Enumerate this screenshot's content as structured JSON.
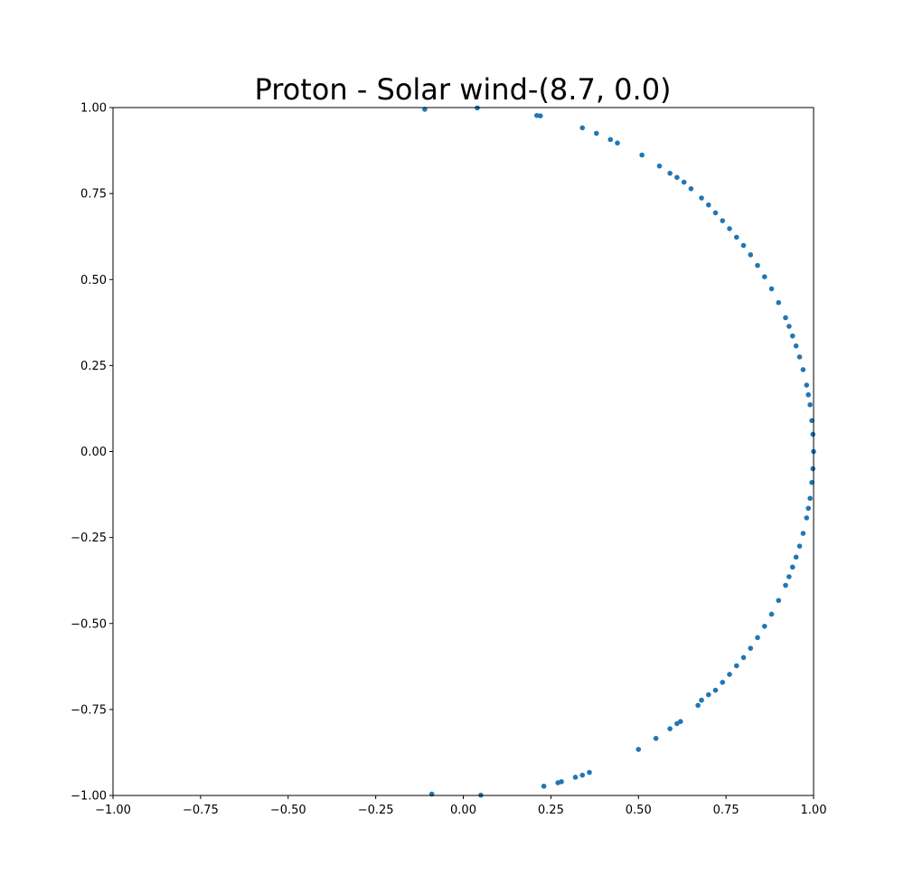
{
  "chart_data": {
    "type": "scatter",
    "title": "Proton - Solar wind-(8.7, 0.0)",
    "xlabel": "",
    "ylabel": "",
    "xlim": [
      -1.0,
      1.0
    ],
    "ylim": [
      -1.0,
      1.0
    ],
    "grid": false,
    "color": "#1f77b4",
    "x_ticks": [
      -1.0,
      -0.75,
      -0.5,
      -0.25,
      0.0,
      0.25,
      0.5,
      0.75,
      1.0
    ],
    "y_ticks": [
      -1.0,
      -0.75,
      -0.5,
      -0.25,
      0.0,
      0.25,
      0.5,
      0.75,
      1.0
    ],
    "x_tick_labels": [
      "−1.00",
      "−0.75",
      "−0.50",
      "−0.25",
      "0.00",
      "0.25",
      "0.50",
      "0.75",
      "1.00"
    ],
    "y_tick_labels": [
      "−1.00",
      "−0.75",
      "−0.50",
      "−0.25",
      "0.00",
      "0.25",
      "0.50",
      "0.75",
      "1.00"
    ],
    "series": [
      {
        "points": [
          [
            -0.11,
            0.995
          ],
          [
            0.04,
            0.999
          ],
          [
            0.21,
            0.977
          ],
          [
            0.22,
            0.976
          ],
          [
            0.34,
            0.941
          ],
          [
            0.38,
            0.925
          ],
          [
            0.42,
            0.907
          ],
          [
            0.44,
            0.897
          ],
          [
            0.51,
            0.862
          ],
          [
            0.56,
            0.83
          ],
          [
            0.59,
            0.809
          ],
          [
            0.61,
            0.797
          ],
          [
            0.63,
            0.783
          ],
          [
            0.65,
            0.764
          ],
          [
            0.68,
            0.737
          ],
          [
            0.7,
            0.717
          ],
          [
            0.72,
            0.694
          ],
          [
            0.74,
            0.671
          ],
          [
            0.76,
            0.648
          ],
          [
            0.78,
            0.623
          ],
          [
            0.8,
            0.599
          ],
          [
            0.82,
            0.572
          ],
          [
            0.84,
            0.541
          ],
          [
            0.86,
            0.508
          ],
          [
            0.88,
            0.473
          ],
          [
            0.9,
            0.433
          ],
          [
            0.92,
            0.389
          ],
          [
            0.93,
            0.364
          ],
          [
            0.94,
            0.336
          ],
          [
            0.95,
            0.307
          ],
          [
            0.96,
            0.275
          ],
          [
            0.97,
            0.238
          ],
          [
            0.98,
            0.193
          ],
          [
            0.985,
            0.165
          ],
          [
            0.99,
            0.136
          ],
          [
            0.995,
            0.09
          ],
          [
            0.998,
            0.05
          ],
          [
            1.0,
            0.0
          ],
          [
            0.998,
            -0.05
          ],
          [
            0.995,
            -0.09
          ],
          [
            0.99,
            -0.136
          ],
          [
            0.985,
            -0.165
          ],
          [
            0.98,
            -0.193
          ],
          [
            0.97,
            -0.238
          ],
          [
            0.96,
            -0.275
          ],
          [
            0.95,
            -0.307
          ],
          [
            0.94,
            -0.336
          ],
          [
            0.93,
            -0.364
          ],
          [
            0.92,
            -0.389
          ],
          [
            0.9,
            -0.433
          ],
          [
            0.88,
            -0.473
          ],
          [
            0.86,
            -0.508
          ],
          [
            0.84,
            -0.541
          ],
          [
            0.82,
            -0.572
          ],
          [
            0.8,
            -0.599
          ],
          [
            0.78,
            -0.623
          ],
          [
            0.76,
            -0.648
          ],
          [
            0.74,
            -0.671
          ],
          [
            0.72,
            -0.694
          ],
          [
            0.7,
            -0.707
          ],
          [
            0.68,
            -0.723
          ],
          [
            0.67,
            -0.738
          ],
          [
            0.62,
            -0.785
          ],
          [
            0.61,
            -0.791
          ],
          [
            0.59,
            -0.806
          ],
          [
            0.55,
            -0.834
          ],
          [
            0.5,
            -0.866
          ],
          [
            0.36,
            -0.933
          ],
          [
            0.34,
            -0.941
          ],
          [
            0.32,
            -0.947
          ],
          [
            0.28,
            -0.96
          ],
          [
            0.27,
            -0.963
          ],
          [
            0.23,
            -0.973
          ],
          [
            0.05,
            -0.999
          ],
          [
            -0.09,
            -0.996
          ]
        ]
      }
    ]
  }
}
